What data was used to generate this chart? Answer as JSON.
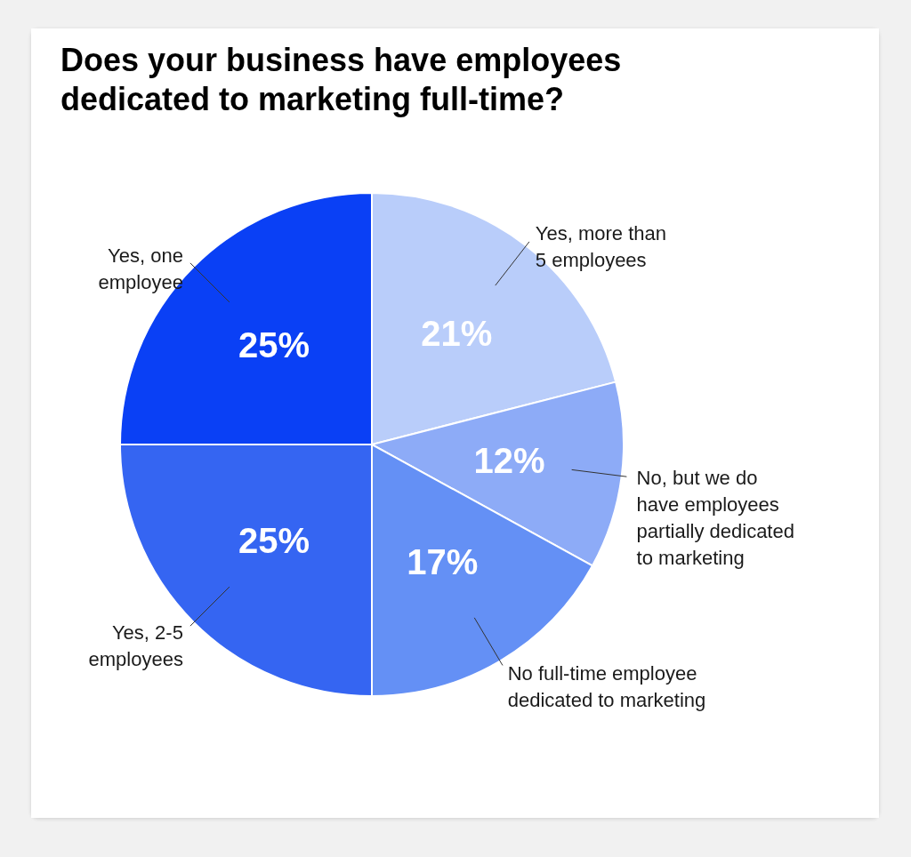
{
  "chart_data": {
    "type": "pie",
    "title": "Does your business have employees dedicated to marketing full-time?",
    "categories": [
      "Yes, more than\n5 employees",
      "No, but we do\nhave employees\npartially dedicated\nto marketing",
      "No full-time employee\ndedicated to marketing",
      "Yes, 2-5\nemployees",
      "Yes, one\nemployee"
    ],
    "values": [
      21,
      12,
      17,
      25,
      25
    ],
    "value_labels": [
      "21%",
      "12%",
      "17%",
      "25%",
      "25%"
    ],
    "colors": [
      "#b9cdfa",
      "#8dabf7",
      "#6490f5",
      "#3565f2",
      "#0a40f5"
    ],
    "legend": false
  }
}
